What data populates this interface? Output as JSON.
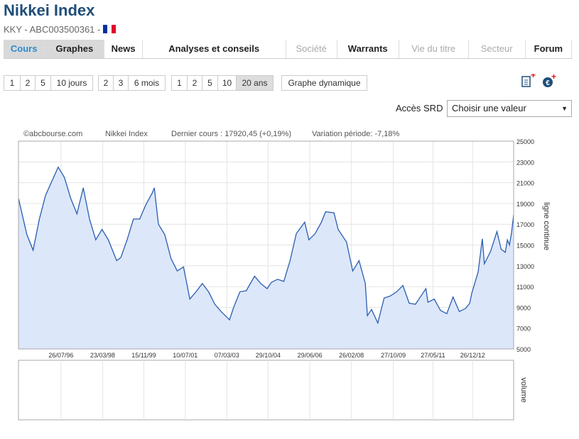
{
  "header": {
    "title": "Nikkei Index",
    "subtitle": "KKY - ABC003500361 -"
  },
  "tabs": [
    "Cours",
    "Graphes",
    "News",
    "Analyses et conseils",
    "Société",
    "Warrants",
    "Vie du titre",
    "Secteur",
    "Forum"
  ],
  "periods": {
    "days": [
      "1",
      "2",
      "5",
      "10 jours"
    ],
    "months": [
      "2",
      "3",
      "6 mois"
    ],
    "years": [
      "1",
      "2",
      "5",
      "10",
      "20 ans"
    ],
    "dynamic": "Graphe dynamique"
  },
  "srd": {
    "label": "Accès SRD",
    "select": "Choisir une valeur"
  },
  "chart_data": {
    "type": "line",
    "source": "©abcbourse.com",
    "name": "Nikkei Index",
    "last_price": "Dernier cours : 17920,45 (+0,19%)",
    "variation": "Variation période: -7,18%",
    "y_label": "ligne continue",
    "volume_label": "volume",
    "x": [
      "15/11/94",
      "15/03/95",
      "15/06/95",
      "15/09/95",
      "15/12/95",
      "15/06/96",
      "15/09/96",
      "15/12/96",
      "15/03/97",
      "15/06/97",
      "15/09/97",
      "15/12/97",
      "15/03/98",
      "15/06/98",
      "15/10/98",
      "15/12/98",
      "15/03/99",
      "15/06/99",
      "15/09/99",
      "15/12/99",
      "15/03/00",
      "15/04/00",
      "15/06/00",
      "15/09/00",
      "15/12/00",
      "15/03/01",
      "15/06/01",
      "15/09/01",
      "15/12/01",
      "15/03/02",
      "15/06/02",
      "15/09/02",
      "15/12/02",
      "15/03/03",
      "15/04/03",
      "15/06/03",
      "15/09/03",
      "15/12/03",
      "15/04/04",
      "15/07/04",
      "15/10/04",
      "15/12/04",
      "15/03/05",
      "15/06/05",
      "15/09/05",
      "15/12/05",
      "15/04/06",
      "15/06/06",
      "15/09/06",
      "15/12/06",
      "15/02/07",
      "15/06/07",
      "15/08/07",
      "15/12/07",
      "15/03/08",
      "15/06/08",
      "15/09/08",
      "15/10/08",
      "15/12/08",
      "15/03/09",
      "15/06/09",
      "15/09/09",
      "15/12/09",
      "15/03/10",
      "15/06/10",
      "15/09/10",
      "15/12/10",
      "15/02/11",
      "15/03/11",
      "15/06/11",
      "15/09/11",
      "15/12/11",
      "15/03/12",
      "15/06/12",
      "15/09/12",
      "15/11/12",
      "15/12/12",
      "15/03/13",
      "15/05/13",
      "15/06/13",
      "15/09/13",
      "15/12/13",
      "15/02/14",
      "15/04/14",
      "15/05/14",
      "15/06/14",
      "15/07/14",
      "15/08/14"
    ],
    "values": [
      19500,
      16000,
      14500,
      17500,
      19800,
      22500,
      21500,
      19500,
      18000,
      20500,
      17500,
      15500,
      16500,
      15500,
      13500,
      13800,
      15500,
      17500,
      17500,
      18900,
      20000,
      20500,
      17000,
      16000,
      13700,
      12500,
      12900,
      9800,
      10500,
      11300,
      10500,
      9300,
      8600,
      8000,
      7800,
      9000,
      10500,
      10600,
      12000,
      11300,
      10800,
      11400,
      11700,
      11500,
      13500,
      16100,
      17200,
      15500,
      16100,
      17200,
      18200,
      18100,
      16500,
      15300,
      12500,
      13500,
      11300,
      8200,
      8800,
      7500,
      9900,
      10100,
      10500,
      11100,
      9400,
      9300,
      10200,
      10800,
      9500,
      9800,
      8700,
      8400,
      10000,
      8600,
      8900,
      9400,
      10400,
      12400,
      15600,
      13200,
      14400,
      16300,
      14600,
      14300,
      15500,
      15000,
      16200,
      17920
    ],
    "color": "#2a5db0",
    "fill_color": "#dce7fa",
    "xlim": [
      "15/11/94",
      "15/08/14"
    ],
    "xticks": [
      "26/07/96",
      "23/03/98",
      "15/11/99",
      "10/07/01",
      "07/03/03",
      "29/10/04",
      "29/06/06",
      "26/02/08",
      "27/10/09",
      "27/05/11",
      "26/12/12"
    ],
    "ylim": [
      5000,
      25000
    ],
    "yticks": [
      5000,
      7000,
      9000,
      11000,
      13000,
      15000,
      17000,
      19000,
      21000,
      23000,
      25000
    ],
    "grid": true
  }
}
